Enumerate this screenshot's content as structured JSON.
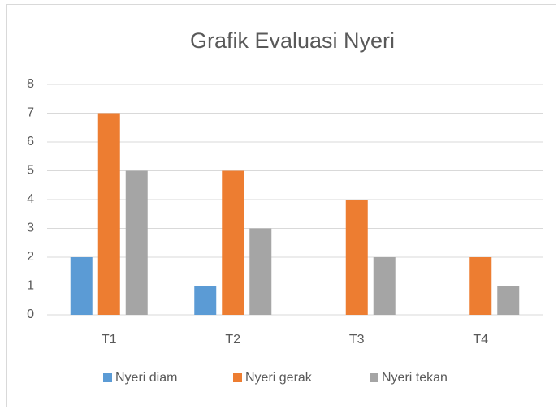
{
  "chart_data": {
    "type": "bar",
    "title": "Grafik Evaluasi Nyeri",
    "categories": [
      "T1",
      "T2",
      "T3",
      "T4"
    ],
    "series": [
      {
        "name": "Nyeri diam",
        "color": "#5b9bd5",
        "values": [
          2,
          1,
          0,
          0
        ]
      },
      {
        "name": "Nyeri gerak",
        "color": "#ed7d31",
        "values": [
          7,
          5,
          4,
          2
        ]
      },
      {
        "name": "Nyeri tekan",
        "color": "#a5a5a5",
        "values": [
          5,
          3,
          2,
          1
        ]
      }
    ],
    "ylim": [
      0,
      8
    ],
    "yticks": [
      0,
      1,
      2,
      3,
      4,
      5,
      6,
      7,
      8
    ],
    "grid": true,
    "legend": "bottom"
  }
}
